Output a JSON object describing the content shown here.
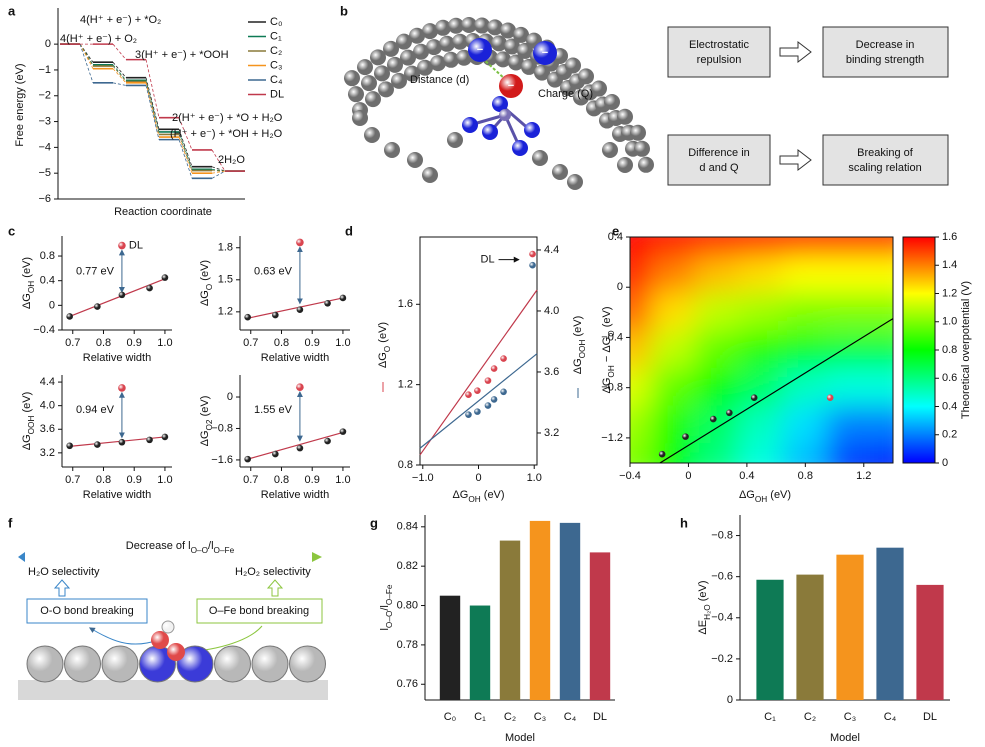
{
  "panel_labels": [
    "a",
    "b",
    "c",
    "d",
    "e",
    "f",
    "g",
    "h"
  ],
  "chart_data": [
    {
      "type": "step",
      "ylabel": "Free energy (eV)",
      "xlabel": "Reaction coordinate",
      "ylim": [
        -6,
        1.4
      ],
      "yticks": [
        {
          "value": -6,
          "label": "−6"
        },
        {
          "value": -5,
          "label": "−5"
        },
        {
          "value": -4,
          "label": "−4"
        },
        {
          "value": -3,
          "label": "−3"
        },
        {
          "value": -2,
          "label": "−2"
        },
        {
          "value": -1,
          "label": "−1"
        },
        0
      ],
      "series": [
        {
          "name": "C₀",
          "color": "#222222",
          "values": [
            0,
            -0.7,
            -1.3,
            -3.3,
            -4.75,
            -4.92
          ]
        },
        {
          "name": "C₁",
          "color": "#0e7a55",
          "values": [
            0,
            -0.8,
            -1.4,
            -3.4,
            -4.85,
            -4.92
          ]
        },
        {
          "name": "C₂",
          "color": "#8a7a3a",
          "values": [
            0,
            -0.85,
            -1.45,
            -3.5,
            -4.9,
            -4.92
          ]
        },
        {
          "name": "C₃",
          "color": "#f5941d",
          "values": [
            0,
            -0.95,
            -1.5,
            -3.6,
            -5.0,
            -4.92
          ]
        },
        {
          "name": "C₄",
          "color": "#3d6890",
          "values": [
            0,
            -1.5,
            -1.6,
            -3.7,
            -5.2,
            -4.92
          ]
        },
        {
          "name": "DL",
          "color": "#c0394b",
          "values": [
            0,
            0,
            -0.6,
            -2.85,
            -4.1,
            -4.92
          ]
        }
      ],
      "annotations": [
        "4(H⁺ + e⁻) + *O₂",
        "4(H⁺ + e⁻) + O₂",
        "3(H⁺ + e⁻) + *OOH",
        "2(H⁺ + e⁻) + *O + H₂O",
        "(H⁺ + e⁻) + *OH + H₂O",
        "2H₂O"
      ]
    },
    {
      "type": "scatter-fit",
      "xlabel": "Relative width",
      "ylabel": [
        "ΔG",
        "OH",
        " (eV)"
      ],
      "xlim": [
        0.665,
        1.023
      ],
      "xticks": [
        0.7,
        0.8,
        0.9,
        {
          "value": 1,
          "label": "1.0"
        }
      ],
      "ylim": [
        -0.4,
        1.125
      ],
      "yticks": [
        {
          "value": -0.4,
          "label": "−0.4"
        },
        0,
        0.4,
        0.8
      ],
      "x": [
        0.69,
        0.78,
        0.86,
        0.95,
        1.0
      ],
      "values": [
        -0.18,
        -0.02,
        0.17,
        0.28,
        0.45
      ],
      "color": "#222222",
      "fit": {
        "x": [
          0.69,
          1.0
        ],
        "values": [
          -0.18,
          0.43
        ],
        "color": "#c0394b"
      },
      "dl": {
        "name": "DL",
        "x": 0.86,
        "value": 0.97,
        "color": "#d9444f"
      },
      "annotation": "0.77 eV"
    },
    {
      "type": "scatter-fit",
      "xlabel": "Relative width",
      "ylabel": [
        "ΔG",
        "O",
        " (eV)"
      ],
      "xlim": [
        0.665,
        1.023
      ],
      "xticks": [
        0.7,
        0.8,
        0.9,
        {
          "value": 1,
          "label": "1.0"
        }
      ],
      "ylim": [
        1.03,
        1.91
      ],
      "yticks": [
        1.2,
        1.5,
        1.8
      ],
      "x": [
        0.69,
        0.78,
        0.86,
        0.95,
        1.0
      ],
      "values": [
        1.15,
        1.17,
        1.22,
        1.28,
        1.33
      ],
      "color": "#222222",
      "fit": {
        "x": [
          0.69,
          1.0
        ],
        "values": [
          1.14,
          1.33
        ],
        "color": "#c0394b"
      },
      "dl": {
        "x": 0.86,
        "value": 1.85,
        "color": "#d9444f"
      },
      "annotation": "0.63 eV"
    },
    {
      "type": "scatter-fit",
      "xlabel": "Relative width",
      "ylabel": [
        "ΔG",
        "OOH",
        " (eV)"
      ],
      "xlim": [
        0.665,
        1.023
      ],
      "xticks": [
        0.7,
        0.8,
        0.9,
        {
          "value": 1,
          "label": "1.0"
        }
      ],
      "ylim": [
        2.96,
        4.52
      ],
      "yticks": [
        3.2,
        3.6,
        {
          "value": 4,
          "label": "4.0"
        },
        4.4
      ],
      "x": [
        0.69,
        0.78,
        0.86,
        0.95,
        1.0
      ],
      "values": [
        3.32,
        3.34,
        3.38,
        3.42,
        3.47
      ],
      "color": "#222222",
      "fit": {
        "x": [
          0.69,
          1.0
        ],
        "values": [
          3.31,
          3.47
        ],
        "color": "#c0394b"
      },
      "dl": {
        "x": 0.86,
        "value": 4.3,
        "color": "#d9444f"
      },
      "annotation": "0.94 eV"
    },
    {
      "type": "scatter-fit",
      "xlabel": "Relative width",
      "ylabel": [
        "ΔG",
        "O2",
        " (eV)"
      ],
      "xlim": [
        0.665,
        1.023
      ],
      "xticks": [
        0.7,
        0.8,
        0.9,
        {
          "value": 1,
          "label": "1.0"
        }
      ],
      "ylim": [
        -1.78,
        0.56
      ],
      "yticks": [
        {
          "value": -1.6,
          "label": "−1.6"
        },
        {
          "value": -0.8,
          "label": "−0.8"
        },
        0
      ],
      "x": [
        0.69,
        0.78,
        0.86,
        0.95,
        1.0
      ],
      "values": [
        -1.58,
        -1.45,
        -1.3,
        -1.12,
        -0.88
      ],
      "color": "#222222",
      "fit": {
        "x": [
          0.69,
          1.0
        ],
        "values": [
          -1.58,
          -0.9
        ],
        "color": "#c0394b"
      },
      "dl": {
        "x": 0.86,
        "value": 0.25,
        "color": "#d9444f"
      },
      "annotation": "1.55 eV"
    },
    {
      "type": "dual-scatter",
      "xlabel": [
        "ΔG",
        "OH",
        " (eV)"
      ],
      "ylabel": [
        "ΔG",
        "O",
        " (eV)"
      ],
      "y2label": [
        "ΔG",
        "OOH",
        " (eV)"
      ],
      "xlim": [
        -1.05,
        1.05
      ],
      "xticks": [
        {
          "value": -1,
          "label": "−1.0"
        },
        0,
        {
          "value": 1,
          "label": "1.0"
        }
      ],
      "ylim": [
        0.8,
        1.935
      ],
      "yticks": [
        0.8,
        1.2,
        1.6
      ],
      "y2lim": [
        2.99,
        4.485
      ],
      "y2ticks": [
        3.2,
        3.6,
        {
          "value": 4,
          "label": "4.0"
        },
        4.4
      ],
      "series": [
        {
          "color": "#d9444f",
          "x": [
            -0.18,
            -0.02,
            0.17,
            0.28,
            0.45
          ],
          "values": [
            1.15,
            1.17,
            1.22,
            1.28,
            1.33
          ],
          "fit": {
            "x": [
              -1.05,
              1.05
            ],
            "values": [
              0.85,
              1.671
            ],
            "color": "#c0394b"
          }
        },
        {
          "color": "#3d6890",
          "axis": "y2",
          "x": [
            -0.18,
            -0.02,
            0.17,
            0.28,
            0.45
          ],
          "values": [
            3.32,
            3.34,
            3.38,
            3.42,
            3.47
          ],
          "fit": {
            "x": [
              -1.05,
              1.05
            ],
            "values": [
              3.1,
              3.72
            ],
            "color": "#3d6890"
          }
        }
      ],
      "dl": {
        "label": "DL",
        "x": 0.97,
        "value": 1.85,
        "value2": 4.3
      }
    },
    {
      "type": "heatmap",
      "xlabel": [
        "ΔG",
        "OH",
        " (eV)"
      ],
      "ylabel": [
        "ΔG",
        "OH",
        " − ΔG",
        "O",
        " (eV)"
      ],
      "colorbar_label": "Theoretical overpotential (V)",
      "xlim": [
        -0.4,
        1.4
      ],
      "xticks": [
        {
          "value": -0.4,
          "label": "−0.4"
        },
        0,
        0.4,
        0.8,
        1.2
      ],
      "ylim": [
        -1.4,
        0.4
      ],
      "yticks": [
        {
          "value": -1.2,
          "label": "−1.2"
        },
        {
          "value": -0.8,
          "label": "−0.8"
        },
        {
          "value": -0.4,
          "label": "−0.4"
        },
        0,
        0.4
      ],
      "x": [
        -0.4,
        -0.1,
        0.2,
        0.5,
        0.8,
        1.1,
        1.4
      ],
      "y": [
        0.4,
        0.1,
        -0.2,
        -0.5,
        -0.8,
        -1.1,
        -1.4
      ],
      "z": [
        [
          1.6,
          1.6,
          1.6,
          1.6,
          1.6,
          1.6,
          1.6
        ],
        [
          1.55,
          1.4,
          1.3,
          1.25,
          1.2,
          1.2,
          1.2
        ],
        [
          1.45,
          1.25,
          1.1,
          1.05,
          1.0,
          1.0,
          1.0
        ],
        [
          1.3,
          1.1,
          0.95,
          0.85,
          0.75,
          0.7,
          0.7
        ],
        [
          1.15,
          0.95,
          0.8,
          0.65,
          0.5,
          0.45,
          0.45
        ],
        [
          1.05,
          0.85,
          0.65,
          0.5,
          0.35,
          0.2,
          0.2
        ],
        [
          1.0,
          0.8,
          0.6,
          0.45,
          0.3,
          0.1,
          0.05
        ]
      ],
      "zlim": [
        0,
        1.6
      ],
      "zticks": [
        0,
        0.2,
        0.4,
        0.6,
        0.8,
        {
          "value": 1,
          "label": "1.0"
        },
        1.2,
        1.4,
        1.6
      ],
      "colormap": [
        "#0000ff",
        "#0080ff",
        "#00ffff",
        "#00ff80",
        "#00ff00",
        "#80ff00",
        "#ffff00",
        "#ff8000",
        "#ff0000"
      ],
      "points": {
        "x": [
          -0.18,
          -0.02,
          0.17,
          0.28,
          0.45
        ],
        "values": [
          -1.33,
          -1.19,
          -1.05,
          -1.0,
          -0.88
        ],
        "color": "#222222"
      },
      "dl": {
        "x": 0.97,
        "value": -0.88,
        "color": "#d9444f"
      },
      "line": {
        "x": [
          -0.195,
          1.4
        ],
        "values": [
          -1.4,
          -0.25
        ],
        "color": "#000000"
      }
    },
    {
      "type": "bar",
      "xlabel": "Model",
      "ylabel": [
        "l",
        "O–O",
        "/l",
        "O–Fe"
      ],
      "categories": [
        "C₀",
        "C₁",
        "C₂",
        "C₃",
        "C₄",
        "DL"
      ],
      "values": [
        0.805,
        0.8,
        0.833,
        0.843,
        0.842,
        0.827
      ],
      "colors": [
        "#222222",
        "#0e7a55",
        "#8a7a3a",
        "#f5941d",
        "#3d6890",
        "#c0394b"
      ],
      "ylim": [
        0.752,
        0.846
      ],
      "yticks": [
        0.76,
        0.78,
        {
          "value": 0.8,
          "label": "0.80"
        },
        0.82,
        0.84
      ]
    },
    {
      "type": "bar",
      "xlabel": "Model",
      "ylabel": [
        "ΔE",
        "H₂O",
        " (eV)"
      ],
      "categories": [
        "C₁",
        "C₂",
        "C₃",
        "C₄",
        "DL"
      ],
      "values": [
        -0.585,
        -0.61,
        -0.707,
        -0.741,
        -0.56
      ],
      "colors": [
        "#0e7a55",
        "#8a7a3a",
        "#f5941d",
        "#3d6890",
        "#c0394b"
      ],
      "ylim": [
        0,
        -0.9
      ],
      "yticks": [
        0,
        {
          "value": -0.2,
          "label": "−0.2"
        },
        {
          "value": -0.4,
          "label": "−0.4"
        },
        {
          "value": -0.6,
          "label": "−0.6"
        },
        {
          "value": -0.8,
          "label": "−0.8"
        }
      ]
    }
  ],
  "panel_b": {
    "labels": [
      "Distance (d)",
      "Charge (Q)"
    ],
    "signs": [
      "−",
      "−",
      "−"
    ],
    "boxes": [
      [
        "Electrostatic",
        "repulsion"
      ],
      [
        "Decrease in",
        "binding strength"
      ],
      [
        "Difference in",
        "d and Q"
      ],
      [
        "Breaking of",
        "scaling relation"
      ]
    ]
  },
  "panel_f": {
    "title": [
      "Decrease of l",
      "O–O",
      "/l",
      "O–Fe"
    ],
    "left": "H₂O selectivity",
    "right": "H₂O₂ selectivity",
    "left_box": "O-O bond breaking",
    "right_box": "O–Fe bond breaking"
  }
}
